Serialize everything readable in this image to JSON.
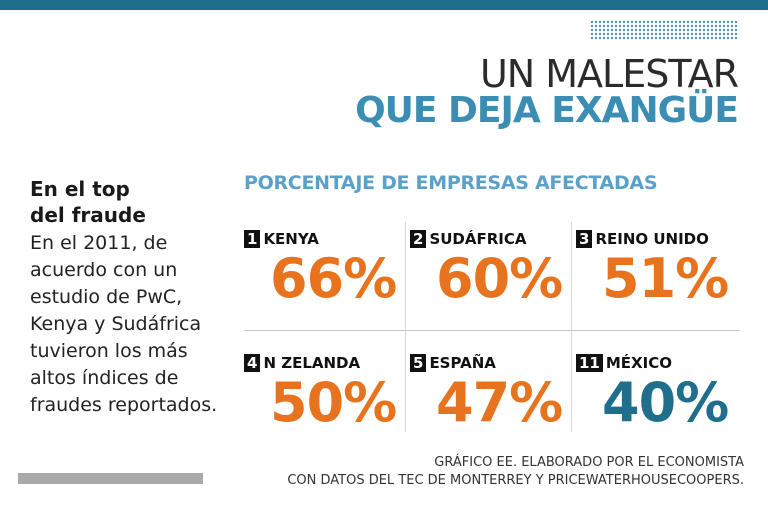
{
  "header": {
    "title_line1": "UN MALESTAR",
    "title_line2": "QUE DEJA EXANGÜE"
  },
  "sidebar": {
    "heading_line1": "En el top",
    "heading_line2": "del fraude",
    "body": "En el 2011, de acuerdo con un estudio de PwC, Kenya y Sudáfrica tuvieron los más altos índices de fraudes reportados."
  },
  "chart_data": {
    "type": "table",
    "title": "PORCENTAJE DE EMPRESAS AFECTADAS",
    "unit": "%",
    "rows": [
      {
        "rank": "1",
        "country": "KENYA",
        "value": 66,
        "label": "66%",
        "color": "#e8731e"
      },
      {
        "rank": "2",
        "country": "SUDÁFRICA",
        "value": 60,
        "label": "60%",
        "color": "#e8731e"
      },
      {
        "rank": "3",
        "country": "REINO UNIDO",
        "value": 51,
        "label": "51%",
        "color": "#e8731e"
      },
      {
        "rank": "4",
        "country": "N ZELANDA",
        "value": 50,
        "label": "50%",
        "color": "#e8731e"
      },
      {
        "rank": "5",
        "country": "ESPAÑA",
        "value": 47,
        "label": "47%",
        "color": "#e8731e"
      },
      {
        "rank": "11",
        "country": "MÉXICO",
        "value": 40,
        "label": "40%",
        "color": "#1f6e8e"
      }
    ]
  },
  "footer": {
    "line1": "GRÁFICO EE. ELABORADO POR EL ECONOMISTA",
    "line2": "CON DATOS DEL TEC DE MONTERREY Y PRICEWATERHOUSECOOPERS."
  }
}
